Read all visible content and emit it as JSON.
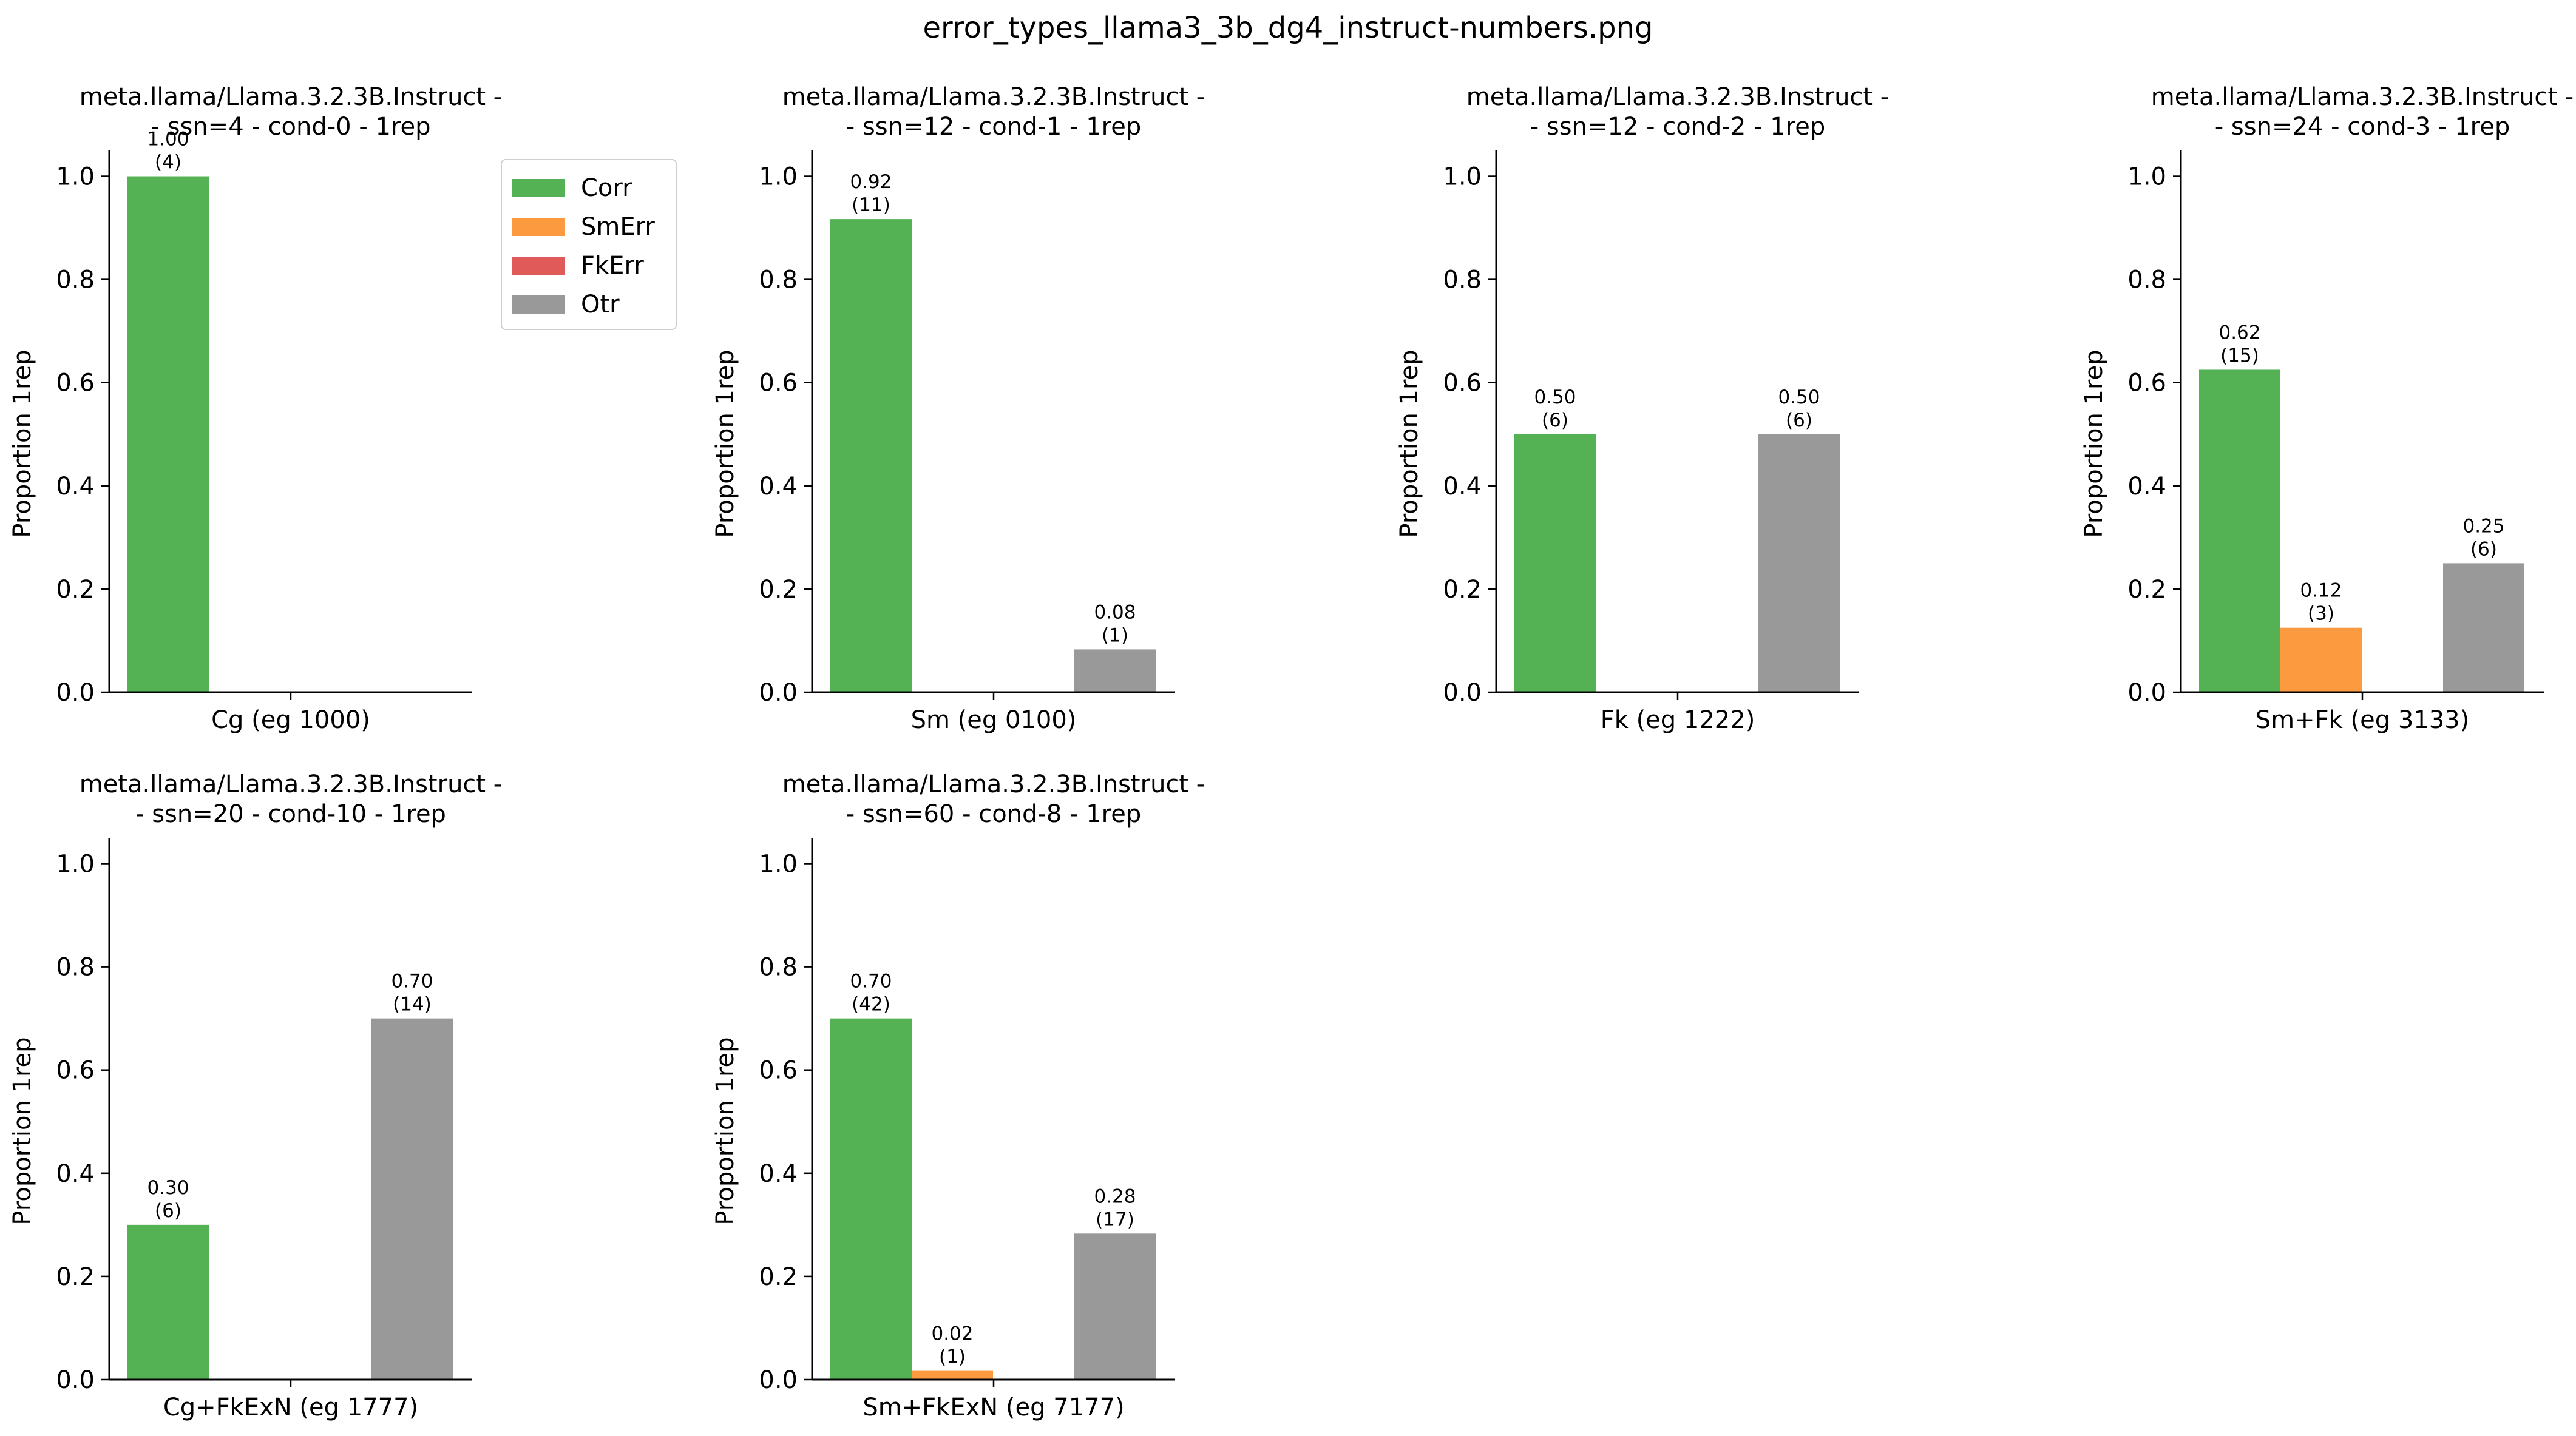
{
  "figure_title": "error_types_llama3_3b_dg4_instruct-numbers.png",
  "legend": [
    {
      "key": "corr",
      "label": "Corr",
      "color": "#55b254"
    },
    {
      "key": "smerr",
      "label": "SmErr",
      "color": "#fc9a3f"
    },
    {
      "key": "fkerr",
      "label": "FkErr",
      "color": "#e05a5a"
    },
    {
      "key": "otr",
      "label": "Otr",
      "color": "#999999"
    }
  ],
  "chart_data": [
    {
      "type": "bar",
      "title": [
        "meta.llama/Llama.3.2.3B.Instruct -",
        "- ssn=4 - cond-0 - 1rep"
      ],
      "xlabel": "Cg (eg 1000)",
      "ylabel": "Proportion 1rep",
      "ylim": [
        0,
        1.05
      ],
      "yticks": [
        "0.0",
        "0.2",
        "0.4",
        "0.6",
        "0.8",
        "1.0"
      ],
      "categories": [
        "Corr",
        "SmErr",
        "FkErr",
        "Otr"
      ],
      "values": [
        1.0,
        0,
        0,
        0
      ],
      "bar_labels": [
        {
          "value": "1.00",
          "count": "(4)"
        },
        null,
        null,
        null
      ]
    },
    {
      "type": "bar",
      "title": [
        "meta.llama/Llama.3.2.3B.Instruct -",
        "- ssn=12 - cond-1 - 1rep"
      ],
      "xlabel": "Sm (eg 0100)",
      "ylabel": "Proportion 1rep",
      "ylim": [
        0,
        1.05
      ],
      "yticks": [
        "0.0",
        "0.2",
        "0.4",
        "0.6",
        "0.8",
        "1.0"
      ],
      "categories": [
        "Corr",
        "SmErr",
        "FkErr",
        "Otr"
      ],
      "values": [
        0.917,
        0,
        0,
        0.083
      ],
      "bar_labels": [
        {
          "value": "0.92",
          "count": "(11)"
        },
        null,
        null,
        {
          "value": "0.08",
          "count": "(1)"
        }
      ]
    },
    {
      "type": "bar",
      "title": [
        "meta.llama/Llama.3.2.3B.Instruct -",
        "- ssn=12 - cond-2 - 1rep"
      ],
      "xlabel": "Fk (eg 1222)",
      "ylabel": "Proportion 1rep",
      "ylim": [
        0,
        1.05
      ],
      "yticks": [
        "0.0",
        "0.2",
        "0.4",
        "0.6",
        "0.8",
        "1.0"
      ],
      "categories": [
        "Corr",
        "SmErr",
        "FkErr",
        "Otr"
      ],
      "values": [
        0.5,
        0,
        0,
        0.5
      ],
      "bar_labels": [
        {
          "value": "0.50",
          "count": "(6)"
        },
        null,
        null,
        {
          "value": "0.50",
          "count": "(6)"
        }
      ]
    },
    {
      "type": "bar",
      "title": [
        "meta.llama/Llama.3.2.3B.Instruct -",
        "- ssn=24 - cond-3 - 1rep"
      ],
      "xlabel": "Sm+Fk (eg 3133)",
      "ylabel": "Proportion 1rep",
      "ylim": [
        0,
        1.05
      ],
      "yticks": [
        "0.0",
        "0.2",
        "0.4",
        "0.6",
        "0.8",
        "1.0"
      ],
      "categories": [
        "Corr",
        "SmErr",
        "FkErr",
        "Otr"
      ],
      "values": [
        0.625,
        0.125,
        0,
        0.25
      ],
      "bar_labels": [
        {
          "value": "0.62",
          "count": "(15)"
        },
        {
          "value": "0.12",
          "count": "(3)"
        },
        null,
        {
          "value": "0.25",
          "count": "(6)"
        }
      ]
    },
    {
      "type": "bar",
      "title": [
        "meta.llama/Llama.3.2.3B.Instruct -",
        "- ssn=20 - cond-10 - 1rep"
      ],
      "xlabel": "Cg+FkExN (eg 1777)",
      "ylabel": "Proportion 1rep",
      "ylim": [
        0,
        1.05
      ],
      "yticks": [
        "0.0",
        "0.2",
        "0.4",
        "0.6",
        "0.8",
        "1.0"
      ],
      "categories": [
        "Corr",
        "SmErr",
        "FkErr",
        "Otr"
      ],
      "values": [
        0.3,
        0,
        0,
        0.7
      ],
      "bar_labels": [
        {
          "value": "0.30",
          "count": "(6)"
        },
        null,
        null,
        {
          "value": "0.70",
          "count": "(14)"
        }
      ]
    },
    {
      "type": "bar",
      "title": [
        "meta.llama/Llama.3.2.3B.Instruct -",
        "- ssn=60 - cond-8 - 1rep"
      ],
      "xlabel": "Sm+FkExN (eg 7177)",
      "ylabel": "Proportion 1rep",
      "ylim": [
        0,
        1.05
      ],
      "yticks": [
        "0.0",
        "0.2",
        "0.4",
        "0.6",
        "0.8",
        "1.0"
      ],
      "categories": [
        "Corr",
        "SmErr",
        "FkErr",
        "Otr"
      ],
      "values": [
        0.7,
        0.017,
        0,
        0.283
      ],
      "bar_labels": [
        {
          "value": "0.70",
          "count": "(42)"
        },
        {
          "value": "0.02",
          "count": "(1)"
        },
        null,
        {
          "value": "0.28",
          "count": "(17)"
        }
      ]
    }
  ]
}
